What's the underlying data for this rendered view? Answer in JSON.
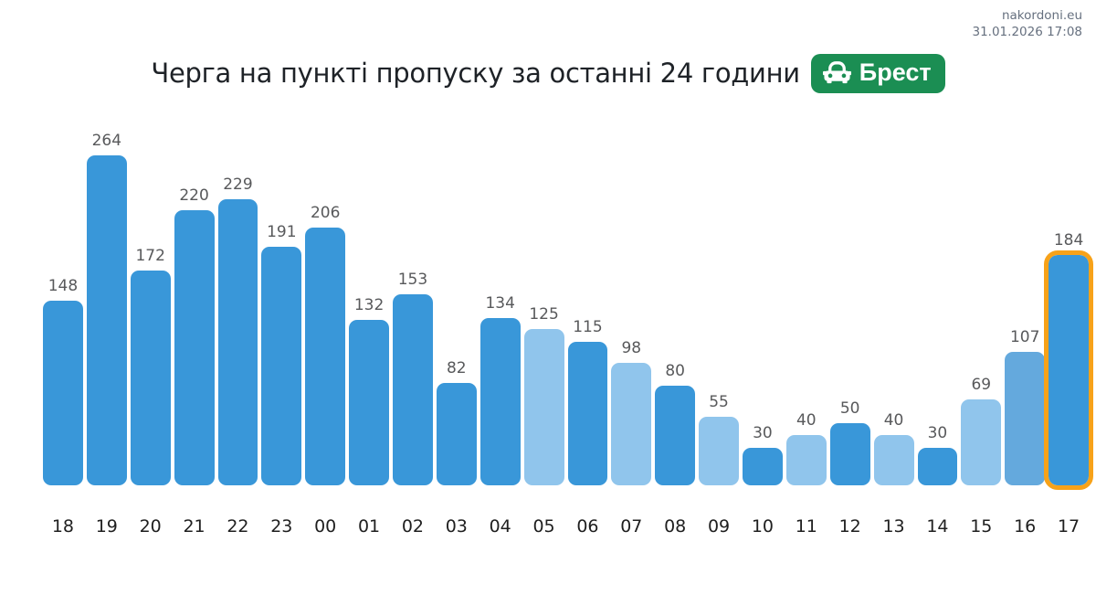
{
  "header": {
    "site_name": "nakordoni.eu",
    "timestamp": "31.01.2026 17:08"
  },
  "title": "Черга на пункті пропуску за останні 24 години",
  "badge": {
    "label": "Брест",
    "color": "#1b8e53",
    "icon": "car-icon"
  },
  "colors": {
    "dark": "#3997d9",
    "light": "#90c5ec",
    "medium": "#64a9dd",
    "highlight": "#f7a219",
    "value_label": "#58595b",
    "axis_label": "#1f1f1f"
  },
  "chart_data": {
    "type": "bar",
    "title": "Черга на пункті пропуску за останні 24 години",
    "categories": [
      "18",
      "19",
      "20",
      "21",
      "22",
      "23",
      "00",
      "01",
      "02",
      "03",
      "04",
      "05",
      "06",
      "07",
      "08",
      "09",
      "10",
      "11",
      "12",
      "13",
      "14",
      "15",
      "16",
      "17"
    ],
    "values": [
      148,
      264,
      172,
      220,
      229,
      191,
      206,
      132,
      153,
      82,
      134,
      125,
      115,
      98,
      80,
      55,
      30,
      40,
      50,
      40,
      30,
      69,
      107,
      184
    ],
    "bar_shades": [
      "dark",
      "dark",
      "dark",
      "dark",
      "dark",
      "dark",
      "dark",
      "dark",
      "dark",
      "dark",
      "dark",
      "light",
      "dark",
      "light",
      "dark",
      "light",
      "dark",
      "light",
      "dark",
      "light",
      "dark",
      "light",
      "medium",
      "dark"
    ],
    "highlighted_index": 23,
    "xlabel": "",
    "ylabel": "",
    "ylim": [
      0,
      280
    ],
    "grid": false,
    "legend": false,
    "value_labels": true
  }
}
